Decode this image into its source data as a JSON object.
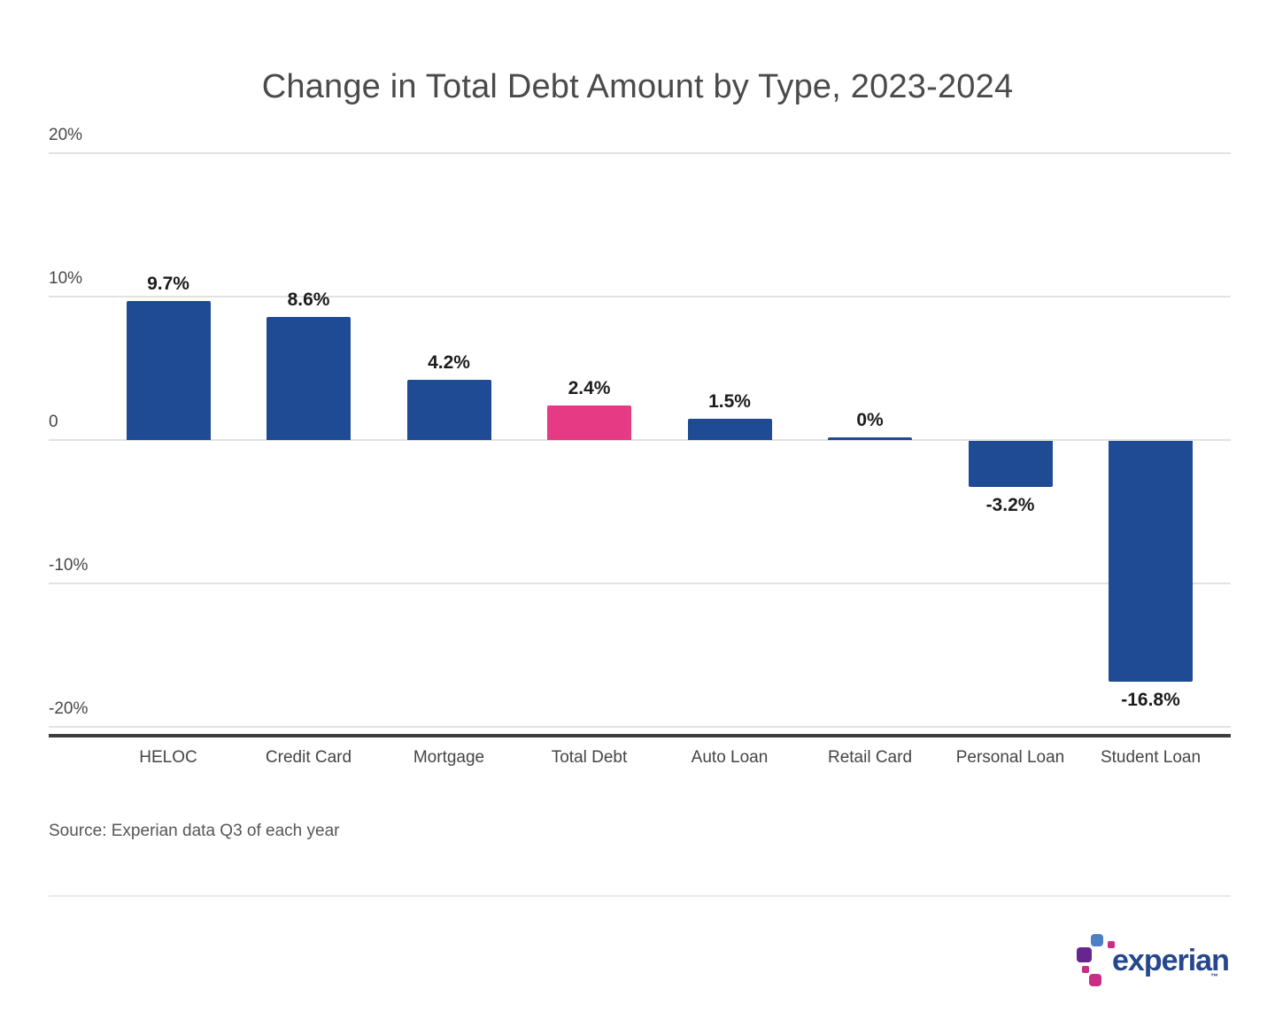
{
  "title": "Change in Total Debt Amount by Type, 2023-2024",
  "source_note": "Source: Experian data Q3 of each year",
  "logo": {
    "wordmark": "experian",
    "trademark": "™"
  },
  "colors": {
    "bar_blue": "#1e4b94",
    "bar_highlight_pink": "#e63a84",
    "gridline": "#e2e2e2",
    "axis_line": "#3d3d3d",
    "logo_text_blue": "#26478d",
    "logo_square_blue": "#4d80c4",
    "logo_square_purple": "#67258f",
    "logo_square_magenta": "#c92d87"
  },
  "chart_data": {
    "type": "bar",
    "title": "Change in Total Debt Amount by Type, 2023-2024",
    "categories": [
      "HELOC",
      "Credit Card",
      "Mortgage",
      "Total Debt",
      "Auto Loan",
      "Retail Card",
      "Personal Loan",
      "Student Loan"
    ],
    "values": [
      9.7,
      8.6,
      4.2,
      2.4,
      1.5,
      0,
      -3.2,
      -16.8
    ],
    "value_labels": [
      "9.7%",
      "8.6%",
      "4.2%",
      "2.4%",
      "1.5%",
      "0%",
      "-3.2%",
      "-16.8%"
    ],
    "highlight_index": 3,
    "highlight_category": "Total Debt",
    "xlabel": "",
    "ylabel": "",
    "ylim": [
      -20,
      20
    ],
    "y_ticks": [
      {
        "value": 20,
        "label": "20%"
      },
      {
        "value": 10,
        "label": "10%"
      },
      {
        "value": 0,
        "label": "0"
      },
      {
        "value": -10,
        "label": "-10%"
      },
      {
        "value": -20,
        "label": "-20%"
      }
    ],
    "grid": true,
    "legend": false
  }
}
